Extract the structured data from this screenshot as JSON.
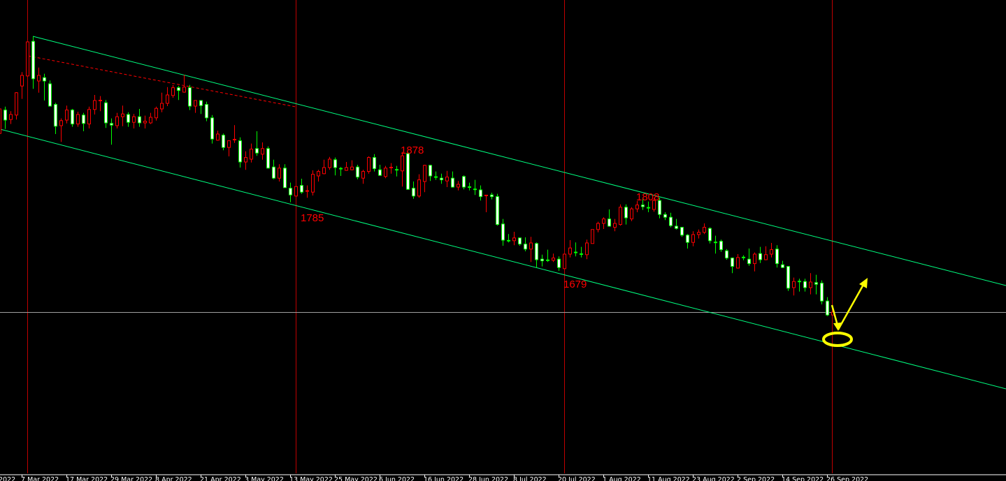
{
  "chart_data": {
    "type": "candlestick",
    "title": "",
    "xlabel": "",
    "ylabel": "",
    "colors": {
      "background": "#000000",
      "bear_body": "#ffffff",
      "bear_outline": "#00ff00",
      "bull_body": "#000000",
      "bull_outline": "#ff0000",
      "channel": "#00ff80",
      "resistance_dashed": "#ff0000",
      "grid_vertical": "#c00000",
      "price_line": "#a0a0a0",
      "annotation": "#ffff00",
      "level_text": "#ff0000",
      "axis_text": "#ffffff"
    },
    "x_tick_labels": [
      "2022",
      "7 Mar 2022",
      "17 Mar 2022",
      "29 Mar 2022",
      "8 Apr 2022",
      "21 Apr 2022",
      "3 May 2022",
      "13 May 2022",
      "25 May 2022",
      "6 Jun 2022",
      "16 Jun 2022",
      "28 Jun 2022",
      "8 Jul 2022",
      "20 Jul 2022",
      "1 Aug 2022",
      "11 Aug 2022",
      "23 Aug 2022",
      "2 Sep 2022",
      "14 Sep 2022",
      "26 Sep 2022"
    ],
    "level_labels": [
      {
        "text": "1878",
        "price": 1878
      },
      {
        "text": "1785",
        "price": 1785
      },
      {
        "text": "1679",
        "price": 1679
      },
      {
        "text": "1808",
        "price": 1808
      }
    ],
    "price_line": 1591,
    "candles_ohlc": [
      [
        1911,
        1959,
        1909,
        1955
      ],
      [
        1953,
        1959,
        1919,
        1935
      ],
      [
        1936,
        1951,
        1928,
        1945
      ],
      [
        1944,
        1985,
        1936,
        1984
      ],
      [
        1996,
        2021,
        1973,
        2015
      ],
      [
        2014,
        2075,
        2013,
        2075
      ],
      [
        2076,
        2085,
        1991,
        2009
      ],
      [
        2005,
        2029,
        1984,
        2015
      ],
      [
        2011,
        2018,
        1970,
        2005
      ],
      [
        2000,
        2006,
        1959,
        1960
      ],
      [
        1963,
        1966,
        1910,
        1924
      ],
      [
        1925,
        1938,
        1896,
        1934
      ],
      [
        1935,
        1961,
        1929,
        1953
      ],
      [
        1953,
        1955,
        1923,
        1928
      ],
      [
        1928,
        1950,
        1923,
        1945
      ],
      [
        1944,
        1948,
        1915,
        1929
      ],
      [
        1928,
        1959,
        1920,
        1954
      ],
      [
        1954,
        1980,
        1945,
        1970
      ],
      [
        1969,
        1978,
        1951,
        1970
      ],
      [
        1966,
        1971,
        1921,
        1930
      ],
      [
        1929,
        1938,
        1891,
        1926
      ],
      [
        1925,
        1948,
        1920,
        1941
      ],
      [
        1941,
        1961,
        1924,
        1946
      ],
      [
        1945,
        1949,
        1923,
        1931
      ],
      [
        1931,
        1946,
        1920,
        1941
      ],
      [
        1941,
        1955,
        1923,
        1930
      ],
      [
        1930,
        1943,
        1920,
        1933
      ],
      [
        1930,
        1948,
        1928,
        1940
      ],
      [
        1939,
        1959,
        1934,
        1956
      ],
      [
        1955,
        1984,
        1949,
        1965
      ],
      [
        1965,
        1994,
        1960,
        1980
      ],
      [
        1979,
        1998,
        1975,
        1993
      ],
      [
        1993,
        1996,
        1971,
        1988
      ],
      [
        1985,
        2016,
        1984,
        1994
      ],
      [
        1993,
        1998,
        1953,
        1960
      ],
      [
        1960,
        1970,
        1948,
        1970
      ],
      [
        1970,
        1970,
        1946,
        1961
      ],
      [
        1963,
        1968,
        1933,
        1939
      ],
      [
        1939,
        1944,
        1893,
        1901
      ],
      [
        1899,
        1916,
        1898,
        1910
      ],
      [
        1908,
        1911,
        1881,
        1886
      ],
      [
        1886,
        1898,
        1870,
        1898
      ],
      [
        1898,
        1926,
        1894,
        1900
      ],
      [
        1898,
        1904,
        1850,
        1860
      ],
      [
        1860,
        1879,
        1846,
        1868
      ],
      [
        1865,
        1893,
        1859,
        1883
      ],
      [
        1884,
        1915,
        1871,
        1876
      ],
      [
        1874,
        1895,
        1864,
        1884
      ],
      [
        1884,
        1888,
        1848,
        1849
      ],
      [
        1851,
        1864,
        1829,
        1831
      ],
      [
        1831,
        1856,
        1825,
        1849
      ],
      [
        1849,
        1856,
        1814,
        1814
      ],
      [
        1813,
        1823,
        1788,
        1801
      ],
      [
        1799,
        1816,
        1798,
        1816
      ],
      [
        1818,
        1830,
        1803,
        1806
      ],
      [
        1806,
        1818,
        1796,
        1808
      ],
      [
        1806,
        1845,
        1800,
        1838
      ],
      [
        1835,
        1846,
        1825,
        1843
      ],
      [
        1839,
        1864,
        1838,
        1850
      ],
      [
        1850,
        1869,
        1846,
        1865
      ],
      [
        1864,
        1868,
        1836,
        1850
      ],
      [
        1848,
        1851,
        1835,
        1848
      ],
      [
        1845,
        1860,
        1844,
        1850
      ],
      [
        1846,
        1863,
        1845,
        1851
      ],
      [
        1851,
        1855,
        1829,
        1833
      ],
      [
        1831,
        1846,
        1821,
        1843
      ],
      [
        1843,
        1870,
        1839,
        1868
      ],
      [
        1868,
        1874,
        1843,
        1848
      ],
      [
        1846,
        1855,
        1835,
        1836
      ],
      [
        1834,
        1853,
        1831,
        1849
      ],
      [
        1849,
        1858,
        1839,
        1850
      ],
      [
        1846,
        1853,
        1834,
        1844
      ],
      [
        1844,
        1878,
        1816,
        1871
      ],
      [
        1875,
        1878,
        1810,
        1811
      ],
      [
        1813,
        1825,
        1794,
        1799
      ],
      [
        1799,
        1838,
        1796,
        1828
      ],
      [
        1825,
        1855,
        1806,
        1854
      ],
      [
        1854,
        1855,
        1826,
        1835
      ],
      [
        1833,
        1843,
        1828,
        1833
      ],
      [
        1831,
        1839,
        1821,
        1828
      ],
      [
        1826,
        1844,
        1815,
        1833
      ],
      [
        1831,
        1843,
        1814,
        1815
      ],
      [
        1815,
        1826,
        1809,
        1820
      ],
      [
        1834,
        1836,
        1811,
        1815
      ],
      [
        1815,
        1823,
        1809,
        1813
      ],
      [
        1811,
        1828,
        1801,
        1811
      ],
      [
        1810,
        1818,
        1791,
        1798
      ],
      [
        1798,
        1800,
        1770,
        1800
      ],
      [
        1801,
        1805,
        1793,
        1798
      ],
      [
        1798,
        1803,
        1746,
        1748
      ],
      [
        1749,
        1758,
        1710,
        1720
      ],
      [
        1719,
        1731,
        1716,
        1719
      ],
      [
        1719,
        1735,
        1711,
        1724
      ],
      [
        1724,
        1725,
        1710,
        1713
      ],
      [
        1713,
        1725,
        1700,
        1704
      ],
      [
        1704,
        1726,
        1681,
        1715
      ],
      [
        1714,
        1716,
        1671,
        1685
      ],
      [
        1686,
        1694,
        1673,
        1683
      ],
      [
        1684,
        1703,
        1681,
        1684
      ],
      [
        1684,
        1696,
        1681,
        1688
      ],
      [
        1686,
        1691,
        1665,
        1671
      ],
      [
        1669,
        1695,
        1668,
        1695
      ],
      [
        1695,
        1720,
        1689,
        1706
      ],
      [
        1698,
        1716,
        1691,
        1698
      ],
      [
        1695,
        1708,
        1689,
        1695
      ],
      [
        1694,
        1721,
        1686,
        1715
      ],
      [
        1714,
        1739,
        1714,
        1739
      ],
      [
        1739,
        1753,
        1734,
        1750
      ],
      [
        1750,
        1761,
        1740,
        1758
      ],
      [
        1758,
        1775,
        1744,
        1745
      ],
      [
        1743,
        1758,
        1736,
        1750
      ],
      [
        1748,
        1784,
        1746,
        1779
      ],
      [
        1779,
        1784,
        1748,
        1760
      ],
      [
        1758,
        1779,
        1754,
        1776
      ],
      [
        1776,
        1790,
        1770,
        1783
      ],
      [
        1783,
        1794,
        1774,
        1780
      ],
      [
        1778,
        1789,
        1770,
        1778
      ],
      [
        1775,
        1795,
        1771,
        1791
      ],
      [
        1791,
        1796,
        1759,
        1766
      ],
      [
        1766,
        1770,
        1756,
        1761
      ],
      [
        1761,
        1769,
        1743,
        1746
      ],
      [
        1745,
        1758,
        1739,
        1741
      ],
      [
        1743,
        1743,
        1726,
        1729
      ],
      [
        1729,
        1731,
        1705,
        1716
      ],
      [
        1716,
        1736,
        1709,
        1730
      ],
      [
        1730,
        1739,
        1723,
        1734
      ],
      [
        1734,
        1750,
        1731,
        1743
      ],
      [
        1741,
        1743,
        1714,
        1719
      ],
      [
        1716,
        1728,
        1696,
        1716
      ],
      [
        1718,
        1721,
        1699,
        1703
      ],
      [
        1701,
        1704,
        1685,
        1688
      ],
      [
        1688,
        1689,
        1661,
        1673
      ],
      [
        1670,
        1695,
        1669,
        1689
      ],
      [
        1689,
        1693,
        1684,
        1689
      ],
      [
        1686,
        1705,
        1674,
        1678
      ],
      [
        1678,
        1698,
        1664,
        1695
      ],
      [
        1696,
        1708,
        1679,
        1685
      ],
      [
        1685,
        1709,
        1684,
        1694
      ],
      [
        1695,
        1715,
        1689,
        1703
      ],
      [
        1704,
        1711,
        1671,
        1678
      ],
      [
        1676,
        1683,
        1670,
        1671
      ],
      [
        1673,
        1673,
        1629,
        1634
      ],
      [
        1635,
        1653,
        1621,
        1646
      ],
      [
        1646,
        1651,
        1628,
        1646
      ],
      [
        1646,
        1651,
        1628,
        1635
      ],
      [
        1635,
        1661,
        1623,
        1645
      ],
      [
        1644,
        1658,
        1623,
        1641
      ],
      [
        1643,
        1648,
        1605,
        1611
      ],
      [
        1611,
        1618,
        1584,
        1586
      ],
      [
        1586,
        1601,
        1586,
        1591
      ]
    ]
  }
}
